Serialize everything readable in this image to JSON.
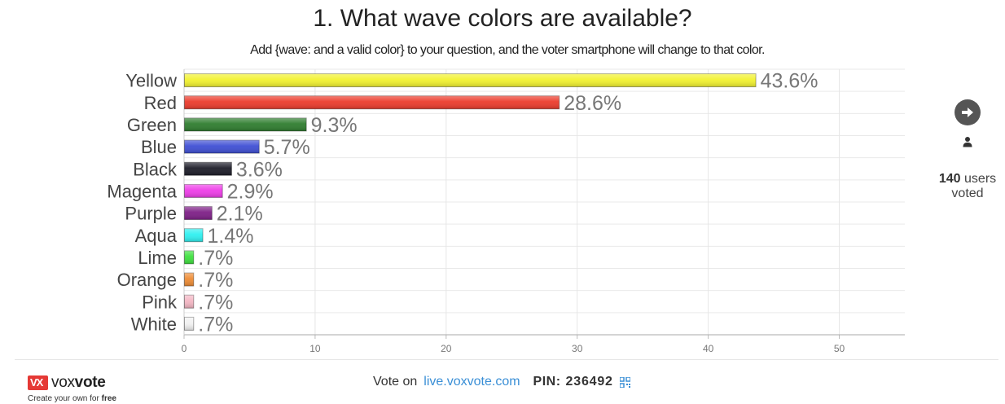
{
  "question": {
    "title": "1. What wave colors are available?",
    "subtitle": "Add {wave: and a valid color} to your question, and the voter smartphone will change to that color."
  },
  "chart_data": {
    "type": "bar",
    "orientation": "horizontal",
    "categories": [
      "Yellow",
      "Red",
      "Green",
      "Blue",
      "Black",
      "Magenta",
      "Purple",
      "Aqua",
      "Lime",
      "Orange",
      "Pink",
      "White"
    ],
    "values": [
      43.6,
      28.6,
      9.3,
      5.7,
      3.6,
      2.9,
      2.1,
      1.4,
      0.7,
      0.7,
      0.7,
      0.7
    ],
    "labels": [
      "43.6%",
      "28.6%",
      "9.3%",
      "5.7%",
      "3.6%",
      "2.9%",
      "2.1%",
      "1.4%",
      ".7%",
      ".7%",
      ".7%",
      ".7%"
    ],
    "colors": [
      "#f2f230",
      "#ec3b2c",
      "#2f7d2f",
      "#3f4fd4",
      "#1c1c28",
      "#ee3ee8",
      "#7e1f87",
      "#2ef0f0",
      "#3ee03e",
      "#ee8c35",
      "#f4b7c4",
      "#f1f1f1"
    ],
    "xlim": [
      0,
      55
    ],
    "xticks": [
      0,
      10,
      20,
      30,
      40,
      50
    ],
    "grid": true
  },
  "side": {
    "next_icon": "arrow-right-circle-icon",
    "user_icon": "user-icon",
    "voter_count": "140",
    "voter_label": "users voted"
  },
  "footer": {
    "brand_mark": "VX",
    "brand_light": "vox",
    "brand_bold": "vote",
    "tagline": "Create your own for",
    "tagline_bold": "free",
    "vote_on": "Vote on",
    "vote_url": "live.voxvote.com",
    "pin_label": "PIN:",
    "pin": "236492",
    "qr_icon": "qr-code-icon"
  }
}
